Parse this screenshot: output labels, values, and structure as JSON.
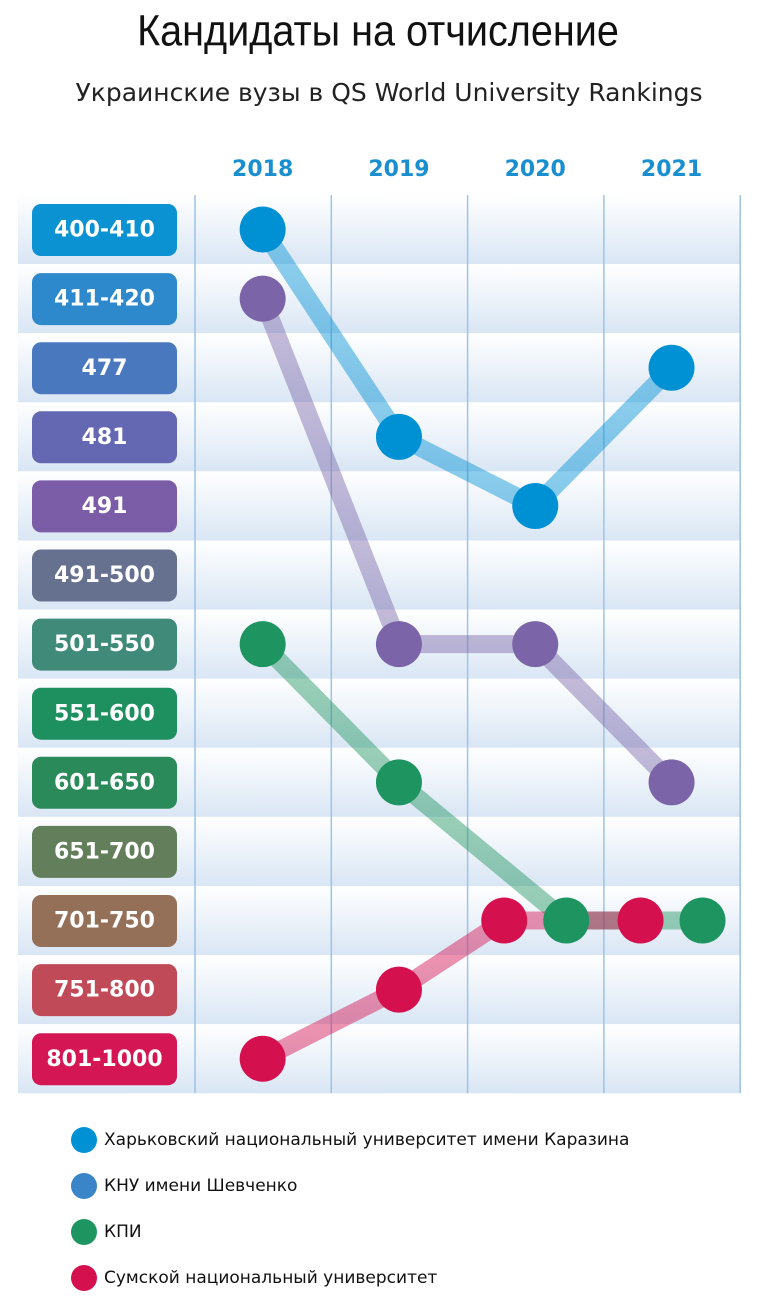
{
  "chart_data": {
    "type": "line",
    "title": "Кандидаты на отчисление",
    "subtitle": "Украинские вузы в QS World University Rankings",
    "x": [
      "2018",
      "2019",
      "2020",
      "2021"
    ],
    "categories": [
      "400-410",
      "411-420",
      "477",
      "481",
      "491",
      "491-500",
      "501-550",
      "551-600",
      "601-650",
      "651-700",
      "701-750",
      "751-800",
      "801-1000"
    ],
    "category_colors": [
      "#0a92d2",
      "#2e88cc",
      "#4a78bf",
      "#6468b3",
      "#7a5da6",
      "#66708f",
      "#3f8a78",
      "#1e9060",
      "#2a8a5a",
      "#637e5a",
      "#957058",
      "#c04a58",
      "#d41655"
    ],
    "grid": true,
    "series": [
      {
        "name": "Харьковский национальный университет имени Каразина",
        "color": "#0090d4",
        "legend_color": "#0090d4",
        "values": [
          "400-410",
          "481",
          "491",
          "477"
        ]
      },
      {
        "name": "КНУ имени Шевченко",
        "color": "#7b65a8",
        "legend_color": "#3a85c8",
        "values": [
          "411-420",
          "501-550",
          "501-550",
          "601-650"
        ]
      },
      {
        "name": "КПИ",
        "color": "#1e9460",
        "legend_color": "#1e9460",
        "values": [
          "501-550",
          "601-650",
          "701-750",
          "701-750"
        ]
      },
      {
        "name": "Сумской национальный университет",
        "color": "#d4104f",
        "legend_color": "#d4104f",
        "values": [
          "801-1000",
          "751-800",
          "701-750",
          "701-750"
        ]
      }
    ]
  }
}
